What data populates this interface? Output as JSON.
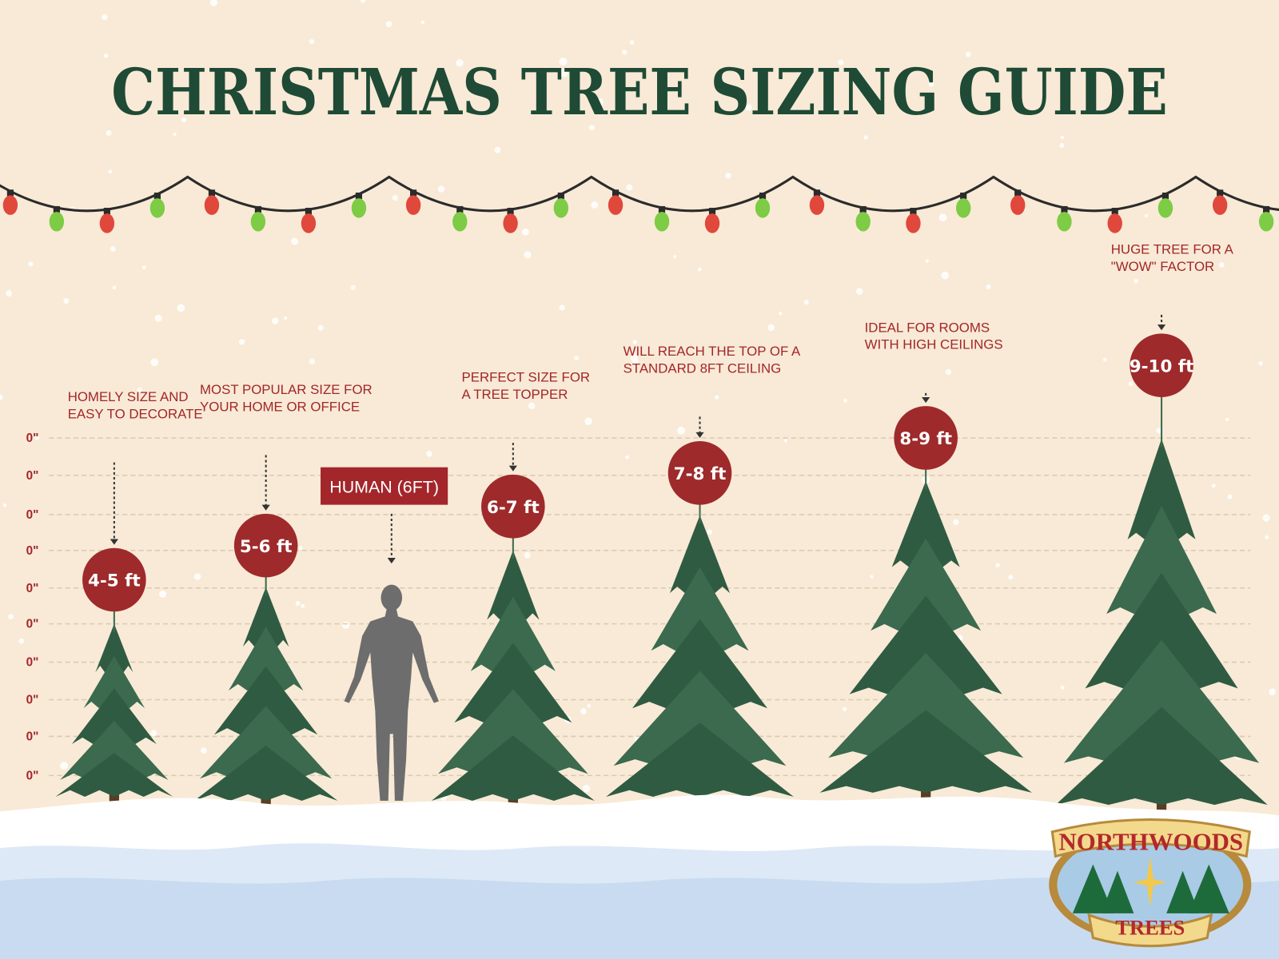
{
  "title": "CHRISTMAS TREE SIZING GUIDE",
  "axis_labels": [
    "0\"",
    "0\"",
    "0\"",
    "0\"",
    "0\"",
    "0\"",
    "0\"",
    "0\"",
    "0\"",
    "0\""
  ],
  "human": {
    "label": "HUMAN (6FT)"
  },
  "trees": [
    {
      "label": "4-5 ft",
      "description": [
        "HOMELY SIZE AND",
        "EASY TO DECORATE"
      ]
    },
    {
      "label": "5-6 ft",
      "description": [
        "MOST POPULAR SIZE FOR",
        "YOUR HOME OR OFFICE"
      ]
    },
    {
      "label": "6-7 ft",
      "description": [
        "PERFECT SIZE FOR",
        "A TREE TOPPER"
      ]
    },
    {
      "label": "7-8 ft",
      "description": [
        "WILL REACH THE TOP OF A",
        "STANDARD 8FT CEILING"
      ]
    },
    {
      "label": "8-9 ft",
      "description": [
        "IDEAL FOR ROOMS",
        "WITH HIGH CEILINGS"
      ]
    },
    {
      "label": "9-10 ft",
      "description": [
        "HUGE TREE FOR A",
        "\"WOW\" FACTOR"
      ]
    }
  ],
  "logo": {
    "top": "NORTHWOODS",
    "bottom": "TREES"
  }
}
